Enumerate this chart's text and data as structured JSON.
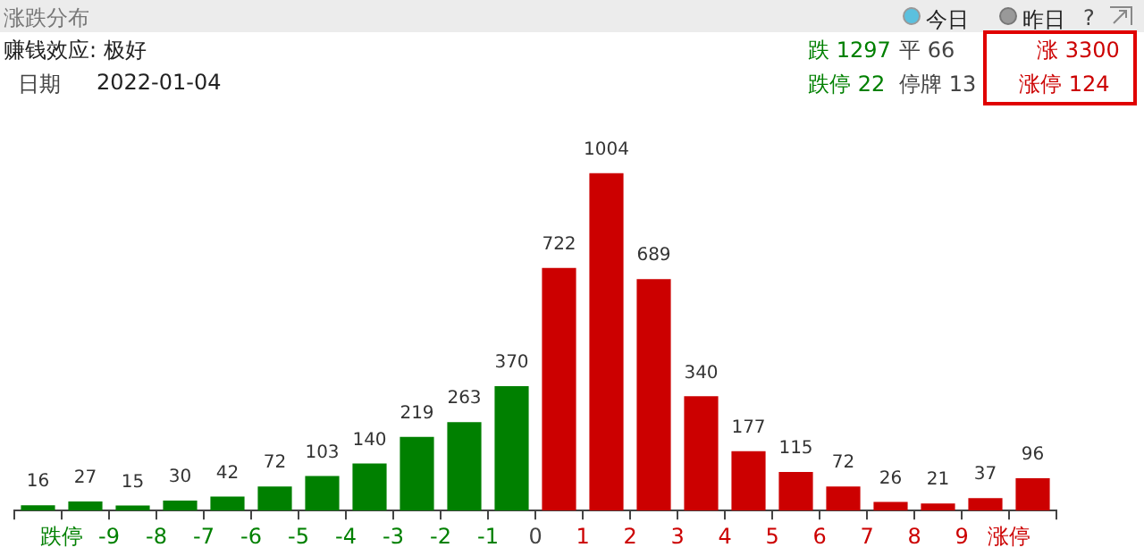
{
  "chart_data": {
    "type": "bar",
    "title": "涨跌分布",
    "annotations": [
      "赚钱效应: 极好",
      "日期",
      "2022-01-04",
      "跌 1297",
      "平 66",
      "涨 3300",
      "跌停 22",
      "停牌 13",
      "涨停 124",
      "今日",
      "昨日",
      "?"
    ],
    "categories": [
      "跌停",
      "-9",
      "-8",
      "-7",
      "-6",
      "-5",
      "-4",
      "-3",
      "-2",
      "-1",
      "0",
      "1",
      "2",
      "3",
      "4",
      "5",
      "6",
      "7",
      "8",
      "9",
      "涨停",
      null
    ],
    "values": [
      16,
      27,
      15,
      30,
      42,
      72,
      103,
      140,
      219,
      263,
      370,
      722,
      1004,
      689,
      340,
      177,
      115,
      72,
      26,
      21,
      37,
      96
    ],
    "colors": [
      "#008000",
      "#008000",
      "#008000",
      "#008000",
      "#008000",
      "#008000",
      "#008000",
      "#008000",
      "#008000",
      "#008000",
      "#008000",
      "#cc0000",
      "#cc0000",
      "#cc0000",
      "#cc0000",
      "#cc0000",
      "#cc0000",
      "#cc0000",
      "#cc0000",
      "#cc0000",
      "#cc0000",
      "#cc0000"
    ],
    "data_labels": true
  }
}
